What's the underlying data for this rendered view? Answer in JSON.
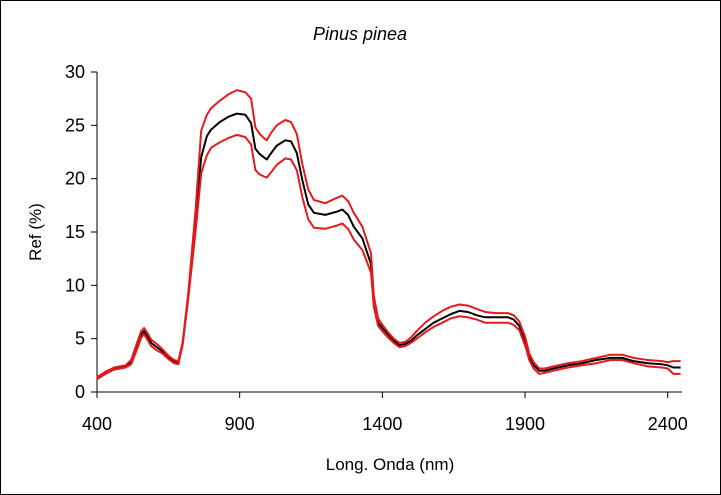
{
  "chart_data": {
    "type": "line",
    "title": "Pinus pinea",
    "xlabel": "Long. Onda (nm)",
    "ylabel": "Ref (%)",
    "xlim": [
      400,
      2450
    ],
    "ylim": [
      0,
      30
    ],
    "xticks": [
      400,
      900,
      1400,
      1900,
      2400
    ],
    "yticks": [
      0,
      5,
      10,
      15,
      20,
      25,
      30
    ],
    "grid": false,
    "legend": "none",
    "series": [
      {
        "color": "#000000",
        "points": [
          [
            400,
            1.3
          ],
          [
            430,
            1.8
          ],
          [
            460,
            2.2
          ],
          [
            500,
            2.4
          ],
          [
            520,
            2.8
          ],
          [
            540,
            4.3
          ],
          [
            555,
            5.4
          ],
          [
            565,
            5.7
          ],
          [
            575,
            5.3
          ],
          [
            590,
            4.6
          ],
          [
            610,
            4.2
          ],
          [
            630,
            3.8
          ],
          [
            650,
            3.3
          ],
          [
            670,
            2.9
          ],
          [
            685,
            2.8
          ],
          [
            700,
            4.5
          ],
          [
            720,
            9.0
          ],
          [
            745,
            16.0
          ],
          [
            765,
            22.0
          ],
          [
            785,
            24.0
          ],
          [
            800,
            24.6
          ],
          [
            830,
            25.3
          ],
          [
            860,
            25.8
          ],
          [
            890,
            26.1
          ],
          [
            920,
            26.0
          ],
          [
            940,
            25.2
          ],
          [
            955,
            22.8
          ],
          [
            970,
            22.3
          ],
          [
            985,
            22.0
          ],
          [
            995,
            21.8
          ],
          [
            1010,
            22.4
          ],
          [
            1030,
            23.1
          ],
          [
            1060,
            23.6
          ],
          [
            1080,
            23.5
          ],
          [
            1100,
            22.4
          ],
          [
            1120,
            19.8
          ],
          [
            1140,
            17.6
          ],
          [
            1160,
            16.8
          ],
          [
            1200,
            16.6
          ],
          [
            1240,
            16.9
          ],
          [
            1260,
            17.1
          ],
          [
            1280,
            16.6
          ],
          [
            1300,
            15.5
          ],
          [
            1330,
            14.4
          ],
          [
            1360,
            12.0
          ],
          [
            1370,
            8.5
          ],
          [
            1385,
            6.5
          ],
          [
            1400,
            6.0
          ],
          [
            1420,
            5.4
          ],
          [
            1440,
            4.8
          ],
          [
            1460,
            4.4
          ],
          [
            1480,
            4.5
          ],
          [
            1500,
            4.8
          ],
          [
            1520,
            5.3
          ],
          [
            1550,
            5.9
          ],
          [
            1580,
            6.5
          ],
          [
            1610,
            6.9
          ],
          [
            1640,
            7.3
          ],
          [
            1670,
            7.6
          ],
          [
            1700,
            7.5
          ],
          [
            1730,
            7.2
          ],
          [
            1760,
            7.0
          ],
          [
            1800,
            7.0
          ],
          [
            1840,
            7.0
          ],
          [
            1860,
            6.8
          ],
          [
            1880,
            6.2
          ],
          [
            1900,
            4.8
          ],
          [
            1915,
            3.3
          ],
          [
            1930,
            2.5
          ],
          [
            1950,
            2.0
          ],
          [
            1970,
            2.0
          ],
          [
            2000,
            2.2
          ],
          [
            2050,
            2.5
          ],
          [
            2100,
            2.7
          ],
          [
            2150,
            3.0
          ],
          [
            2200,
            3.2
          ],
          [
            2240,
            3.2
          ],
          [
            2280,
            2.9
          ],
          [
            2330,
            2.7
          ],
          [
            2380,
            2.6
          ],
          [
            2400,
            2.5
          ],
          [
            2420,
            2.3
          ],
          [
            2445,
            2.3
          ]
        ]
      },
      {
        "color": "#e41a1c",
        "points": [
          [
            400,
            1.4
          ],
          [
            430,
            1.9
          ],
          [
            460,
            2.3
          ],
          [
            500,
            2.5
          ],
          [
            520,
            3.0
          ],
          [
            540,
            4.6
          ],
          [
            555,
            5.7
          ],
          [
            565,
            6.0
          ],
          [
            575,
            5.6
          ],
          [
            590,
            4.9
          ],
          [
            610,
            4.5
          ],
          [
            630,
            4.0
          ],
          [
            650,
            3.4
          ],
          [
            670,
            3.0
          ],
          [
            685,
            2.9
          ],
          [
            700,
            4.6
          ],
          [
            720,
            9.3
          ],
          [
            745,
            17.0
          ],
          [
            765,
            24.5
          ],
          [
            785,
            26.0
          ],
          [
            800,
            26.6
          ],
          [
            830,
            27.3
          ],
          [
            860,
            27.9
          ],
          [
            890,
            28.3
          ],
          [
            920,
            28.1
          ],
          [
            940,
            27.5
          ],
          [
            955,
            24.8
          ],
          [
            970,
            24.2
          ],
          [
            985,
            23.8
          ],
          [
            995,
            23.6
          ],
          [
            1010,
            24.3
          ],
          [
            1030,
            25.0
          ],
          [
            1060,
            25.5
          ],
          [
            1080,
            25.3
          ],
          [
            1100,
            24.2
          ],
          [
            1120,
            21.3
          ],
          [
            1140,
            19.0
          ],
          [
            1160,
            18.0
          ],
          [
            1200,
            17.7
          ],
          [
            1240,
            18.2
          ],
          [
            1260,
            18.4
          ],
          [
            1280,
            17.9
          ],
          [
            1300,
            16.8
          ],
          [
            1330,
            15.5
          ],
          [
            1360,
            13.0
          ],
          [
            1370,
            9.0
          ],
          [
            1385,
            6.9
          ],
          [
            1400,
            6.3
          ],
          [
            1420,
            5.6
          ],
          [
            1440,
            5.0
          ],
          [
            1460,
            4.6
          ],
          [
            1480,
            4.7
          ],
          [
            1500,
            5.1
          ],
          [
            1520,
            5.7
          ],
          [
            1550,
            6.5
          ],
          [
            1580,
            7.1
          ],
          [
            1610,
            7.6
          ],
          [
            1640,
            8.0
          ],
          [
            1670,
            8.2
          ],
          [
            1700,
            8.1
          ],
          [
            1730,
            7.8
          ],
          [
            1760,
            7.5
          ],
          [
            1800,
            7.4
          ],
          [
            1840,
            7.4
          ],
          [
            1860,
            7.2
          ],
          [
            1880,
            6.6
          ],
          [
            1900,
            5.2
          ],
          [
            1915,
            3.6
          ],
          [
            1930,
            2.8
          ],
          [
            1950,
            2.2
          ],
          [
            1970,
            2.2
          ],
          [
            2000,
            2.4
          ],
          [
            2050,
            2.7
          ],
          [
            2100,
            2.9
          ],
          [
            2150,
            3.2
          ],
          [
            2200,
            3.5
          ],
          [
            2240,
            3.5
          ],
          [
            2280,
            3.2
          ],
          [
            2330,
            3.0
          ],
          [
            2380,
            2.9
          ],
          [
            2400,
            2.8
          ],
          [
            2420,
            2.9
          ],
          [
            2445,
            2.9
          ]
        ]
      },
      {
        "color": "#e41a1c",
        "points": [
          [
            400,
            1.2
          ],
          [
            430,
            1.7
          ],
          [
            460,
            2.1
          ],
          [
            500,
            2.3
          ],
          [
            520,
            2.6
          ],
          [
            540,
            4.0
          ],
          [
            555,
            5.1
          ],
          [
            565,
            5.4
          ],
          [
            575,
            5.0
          ],
          [
            590,
            4.3
          ],
          [
            610,
            3.9
          ],
          [
            630,
            3.6
          ],
          [
            650,
            3.1
          ],
          [
            670,
            2.7
          ],
          [
            685,
            2.6
          ],
          [
            700,
            4.4
          ],
          [
            720,
            8.8
          ],
          [
            745,
            15.0
          ],
          [
            765,
            20.5
          ],
          [
            785,
            22.2
          ],
          [
            800,
            22.9
          ],
          [
            830,
            23.4
          ],
          [
            860,
            23.8
          ],
          [
            890,
            24.1
          ],
          [
            920,
            23.9
          ],
          [
            940,
            23.2
          ],
          [
            955,
            20.8
          ],
          [
            970,
            20.4
          ],
          [
            985,
            20.2
          ],
          [
            995,
            20.1
          ],
          [
            1010,
            20.6
          ],
          [
            1030,
            21.3
          ],
          [
            1060,
            21.9
          ],
          [
            1080,
            21.8
          ],
          [
            1100,
            20.8
          ],
          [
            1120,
            18.2
          ],
          [
            1140,
            16.2
          ],
          [
            1160,
            15.4
          ],
          [
            1200,
            15.3
          ],
          [
            1240,
            15.6
          ],
          [
            1260,
            15.8
          ],
          [
            1280,
            15.3
          ],
          [
            1300,
            14.3
          ],
          [
            1330,
            13.3
          ],
          [
            1360,
            11.2
          ],
          [
            1370,
            8.0
          ],
          [
            1385,
            6.2
          ],
          [
            1400,
            5.7
          ],
          [
            1420,
            5.1
          ],
          [
            1440,
            4.6
          ],
          [
            1460,
            4.2
          ],
          [
            1480,
            4.3
          ],
          [
            1500,
            4.6
          ],
          [
            1520,
            5.0
          ],
          [
            1550,
            5.6
          ],
          [
            1580,
            6.1
          ],
          [
            1610,
            6.5
          ],
          [
            1640,
            6.9
          ],
          [
            1670,
            7.1
          ],
          [
            1700,
            7.0
          ],
          [
            1730,
            6.8
          ],
          [
            1760,
            6.5
          ],
          [
            1800,
            6.5
          ],
          [
            1840,
            6.5
          ],
          [
            1860,
            6.3
          ],
          [
            1880,
            5.8
          ],
          [
            1900,
            4.4
          ],
          [
            1915,
            3.0
          ],
          [
            1930,
            2.2
          ],
          [
            1950,
            1.7
          ],
          [
            1970,
            1.8
          ],
          [
            2000,
            2.0
          ],
          [
            2050,
            2.3
          ],
          [
            2100,
            2.5
          ],
          [
            2150,
            2.7
          ],
          [
            2200,
            3.0
          ],
          [
            2240,
            3.0
          ],
          [
            2280,
            2.7
          ],
          [
            2330,
            2.4
          ],
          [
            2380,
            2.3
          ],
          [
            2400,
            2.2
          ],
          [
            2420,
            1.7
          ],
          [
            2445,
            1.7
          ]
        ]
      }
    ]
  }
}
